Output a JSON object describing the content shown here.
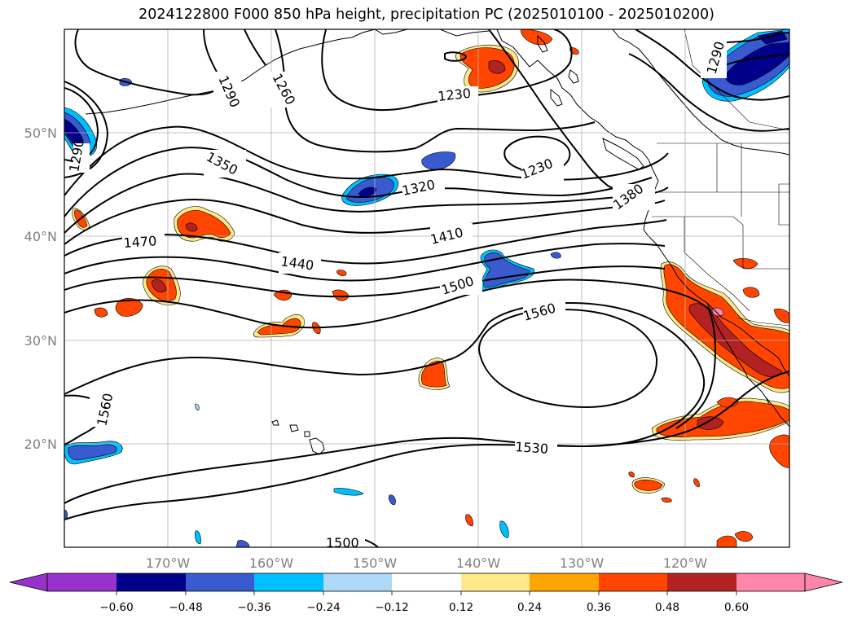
{
  "title": "2024122800 F000 850 hPa height, precipitation PC (2025010100 - 2025010200)",
  "axes": {
    "lat_labels": [
      "50°N",
      "40°N",
      "30°N",
      "20°N"
    ],
    "lon_labels": [
      "170°W",
      "160°W",
      "150°W",
      "140°W",
      "130°W",
      "120°W"
    ],
    "gridlines": true,
    "lon_range_deg": [
      -180,
      -110
    ],
    "lat_range_deg": [
      10,
      60
    ]
  },
  "contour_labels": [
    "1290",
    "1260",
    "1230",
    "1290",
    "1350",
    "1320",
    "1230",
    "1380",
    "1410",
    "1470",
    "1440",
    "1500",
    "1560",
    "1560",
    "1530",
    "1500",
    "1290"
  ],
  "colorbar": {
    "ticks": [
      "−0.60",
      "−0.48",
      "−0.36",
      "−0.24",
      "−0.12",
      "0.12",
      "0.24",
      "0.36",
      "0.48",
      "0.60"
    ],
    "colors": [
      "#9932cc",
      "#00008b",
      "#3a5bd0",
      "#00bfff",
      "#add8f6",
      "#ffffff",
      "#ffe88c",
      "#ffa500",
      "#ff4500",
      "#b22222",
      "#ff85aa"
    ],
    "extend": "both"
  },
  "shading_colors": {
    "dark_blue": "#00008b",
    "blue": "#3a5bd0",
    "light_blue": "#00bfff",
    "yellow": "#ffe88c",
    "orange": "#ffa500",
    "red_orange": "#ff4500",
    "dark_red": "#b22222",
    "pink": "#ff85aa"
  }
}
